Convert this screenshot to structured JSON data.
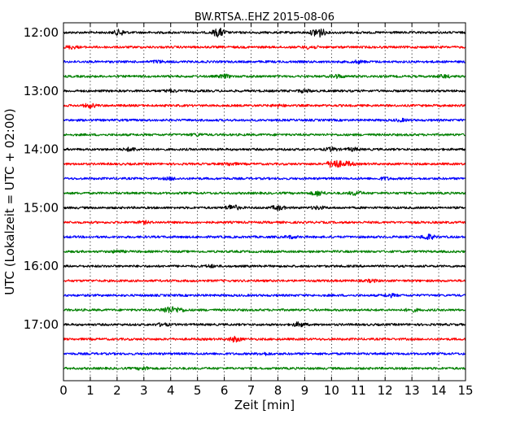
{
  "chart_data": {
    "type": "line",
    "title": "BW.RTSA..EHZ 2015-08-06",
    "xlabel": "Zeit  [min]",
    "ylabel": "UTC (Lokalzeit = UTC + 02:00)",
    "xlim": [
      0,
      15
    ],
    "x_ticks": [
      "0",
      "1",
      "2",
      "3",
      "4",
      "5",
      "6",
      "7",
      "8",
      "9",
      "10",
      "11",
      "12",
      "13",
      "14",
      "15"
    ],
    "y_ticks": [
      "12:00",
      "13:00",
      "14:00",
      "15:00",
      "16:00",
      "17:00"
    ],
    "row_interval_minutes": 15,
    "grid": "vertical dotted",
    "colors": [
      "#000000",
      "#ff0000",
      "#0000ff",
      "#008000"
    ],
    "series": [
      {
        "start": "12:00",
        "color": "#000000",
        "events": [
          [
            2.1,
            1.0
          ],
          [
            5.8,
            1.6
          ],
          [
            9.5,
            2.0
          ]
        ]
      },
      {
        "start": "12:15",
        "color": "#ff0000",
        "events": [
          [
            0.3,
            0.5
          ],
          [
            9.2,
            0.6
          ]
        ]
      },
      {
        "start": "12:30",
        "color": "#0000ff",
        "events": [
          [
            3.5,
            0.4
          ],
          [
            11.0,
            0.4
          ]
        ]
      },
      {
        "start": "12:45",
        "color": "#008000",
        "events": [
          [
            6.0,
            0.6
          ],
          [
            10.2,
            0.6
          ],
          [
            14.2,
            0.5
          ]
        ]
      },
      {
        "start": "13:00",
        "color": "#000000",
        "events": [
          [
            4.0,
            0.4
          ],
          [
            9.0,
            0.5
          ]
        ]
      },
      {
        "start": "13:15",
        "color": "#ff0000",
        "events": [
          [
            1.0,
            0.7
          ],
          [
            8.0,
            0.4
          ]
        ]
      },
      {
        "start": "13:30",
        "color": "#0000ff",
        "events": [
          [
            12.6,
            0.4
          ]
        ]
      },
      {
        "start": "13:45",
        "color": "#008000",
        "events": [
          [
            5.0,
            0.4
          ]
        ]
      },
      {
        "start": "14:00",
        "color": "#000000",
        "events": [
          [
            2.5,
            0.6
          ],
          [
            10.0,
            0.6
          ],
          [
            10.8,
            0.5
          ]
        ]
      },
      {
        "start": "14:15",
        "color": "#ff0000",
        "events": [
          [
            6.2,
            0.5
          ],
          [
            10.1,
            1.8
          ],
          [
            10.6,
            0.8
          ]
        ]
      },
      {
        "start": "14:30",
        "color": "#0000ff",
        "events": [
          [
            4.0,
            0.4
          ],
          [
            12.0,
            0.4
          ]
        ]
      },
      {
        "start": "14:45",
        "color": "#008000",
        "events": [
          [
            9.5,
            0.9
          ],
          [
            10.9,
            0.7
          ]
        ]
      },
      {
        "start": "15:00",
        "color": "#000000",
        "events": [
          [
            6.3,
            1.1
          ],
          [
            8.0,
            0.8
          ],
          [
            9.5,
            0.5
          ]
        ]
      },
      {
        "start": "15:15",
        "color": "#ff0000",
        "events": [
          [
            3.0,
            0.4
          ]
        ]
      },
      {
        "start": "15:30",
        "color": "#0000ff",
        "events": [
          [
            8.5,
            0.4
          ],
          [
            13.6,
            1.0
          ]
        ]
      },
      {
        "start": "15:45",
        "color": "#008000",
        "events": [
          [
            2.0,
            0.4
          ]
        ]
      },
      {
        "start": "16:00",
        "color": "#000000",
        "events": [
          [
            5.5,
            0.4
          ]
        ]
      },
      {
        "start": "16:15",
        "color": "#ff0000",
        "events": [
          [
            11.5,
            0.4
          ]
        ]
      },
      {
        "start": "16:30",
        "color": "#0000ff",
        "events": [
          [
            12.2,
            0.5
          ]
        ]
      },
      {
        "start": "16:45",
        "color": "#008000",
        "events": [
          [
            3.9,
            1.2
          ],
          [
            4.3,
            0.8
          ],
          [
            13.0,
            0.5
          ]
        ]
      },
      {
        "start": "17:00",
        "color": "#000000",
        "events": [
          [
            3.7,
            0.5
          ],
          [
            8.8,
            0.8
          ]
        ]
      },
      {
        "start": "17:15",
        "color": "#ff0000",
        "events": [
          [
            6.4,
            0.9
          ]
        ]
      },
      {
        "start": "17:30",
        "color": "#0000ff",
        "events": [
          [
            7.5,
            0.4
          ]
        ]
      },
      {
        "start": "17:45",
        "color": "#008000",
        "events": [
          [
            3.0,
            0.5
          ]
        ]
      }
    ]
  }
}
